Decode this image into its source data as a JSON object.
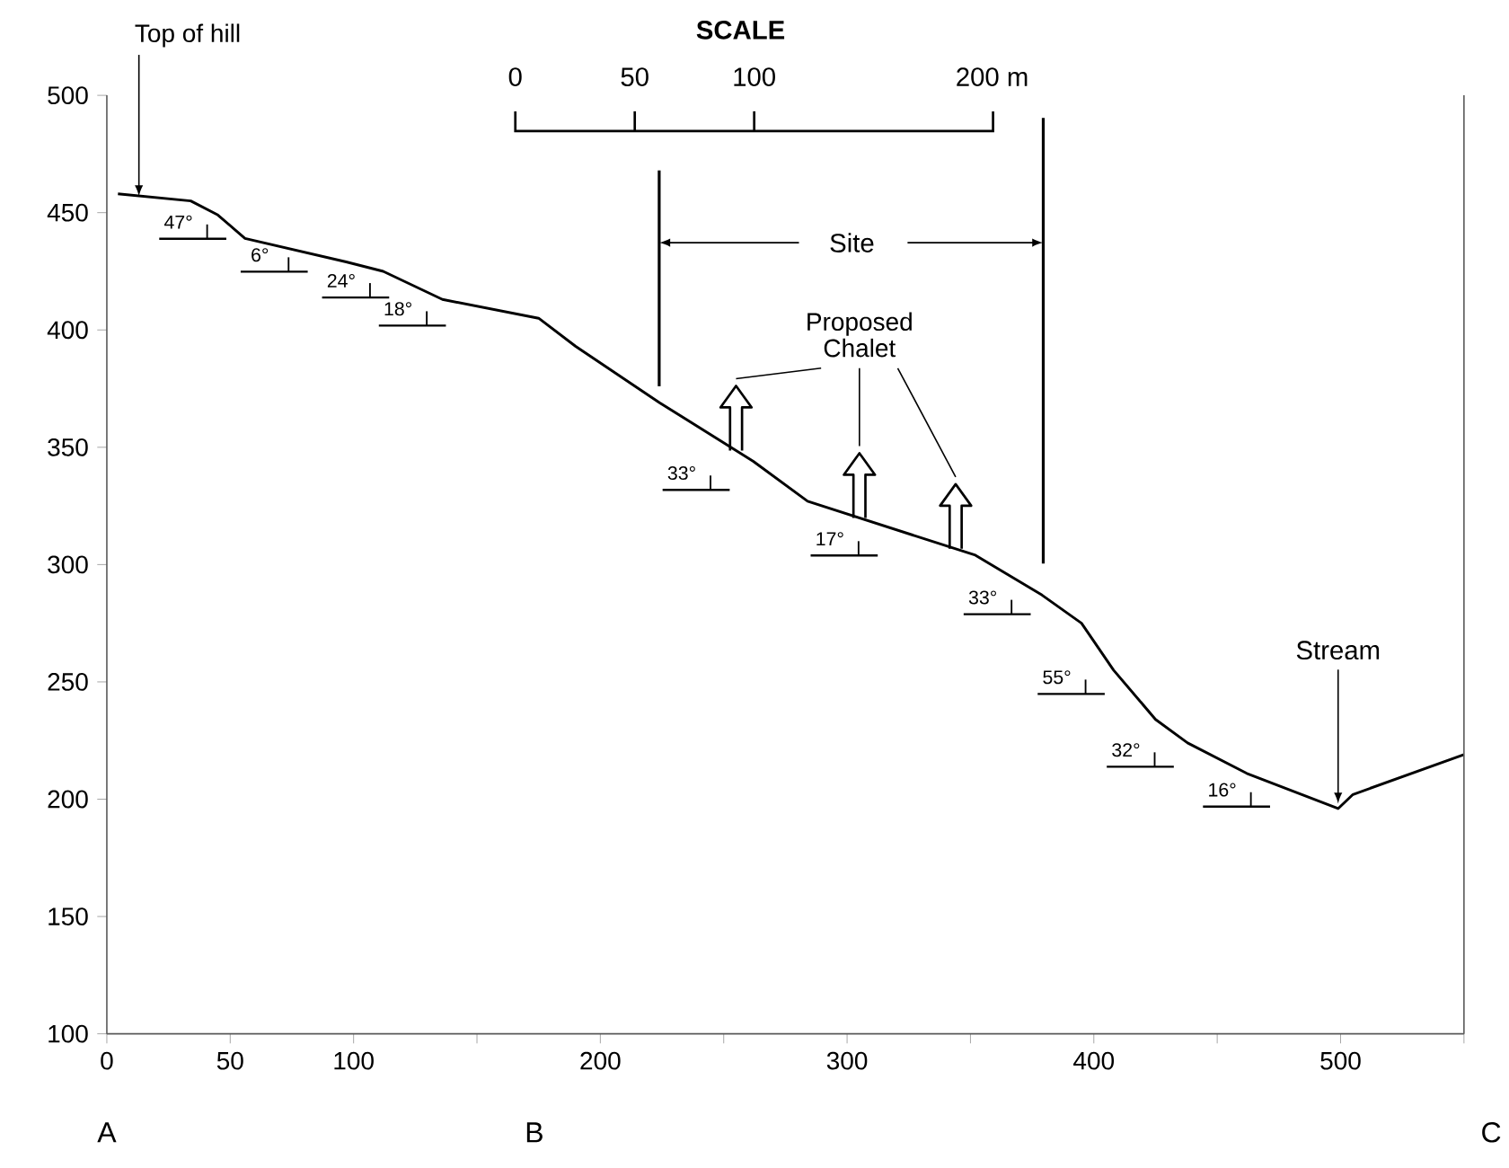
{
  "chart_data": {
    "type": "line",
    "color": "#000000",
    "line_style": "solid",
    "x": [
      4.5,
      34,
      45,
      56,
      97,
      112,
      136,
      175,
      190,
      224,
      262,
      284,
      352,
      379,
      395,
      408,
      425,
      438,
      462,
      499,
      505,
      550
    ],
    "values": [
      458,
      455,
      449,
      439,
      429,
      425,
      413,
      405,
      393,
      369,
      344,
      327,
      304,
      287,
      275,
      255,
      234,
      224,
      211,
      196,
      202,
      219
    ],
    "xlim": [
      0,
      550
    ],
    "ylim": [
      100,
      500
    ],
    "xticks": [
      0,
      50,
      100,
      {
        "value": 150,
        "label": null
      },
      200,
      {
        "value": 250,
        "label": null
      },
      300,
      {
        "value": 350,
        "label": null
      },
      400,
      {
        "value": 450,
        "label": null
      },
      500,
      {
        "value": 550,
        "label": null
      }
    ],
    "yticks": [
      100,
      150,
      200,
      250,
      300,
      350,
      400,
      450,
      500
    ],
    "annotations": [
      "47°",
      "6°",
      "24°",
      "18°",
      "33°",
      "17°",
      "33°",
      "55°",
      "32°",
      "16°",
      {
        "text": "Top of hill",
        "x": 13,
        "y": 457
      },
      "Proposed Chalet",
      {
        "text": "Stream",
        "x": 499,
        "y": 196
      },
      "Site",
      "SCALE",
      "0",
      "50",
      "100",
      "200 m",
      "A",
      "B",
      "C"
    ]
  }
}
